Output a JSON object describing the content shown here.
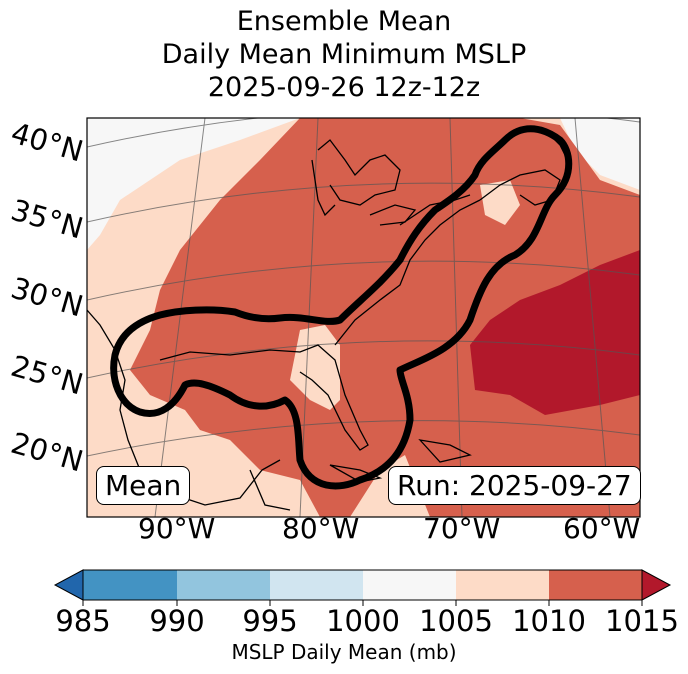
{
  "title": {
    "line1": "Ensemble Mean",
    "line2": "Daily Mean Minimum MSLP",
    "line3": "2025-09-26 12z-12z"
  },
  "map": {
    "lat_labels": [
      "40°N",
      "35°N",
      "30°N",
      "25°N",
      "20°N"
    ],
    "lon_labels": [
      "90°W",
      "80°W",
      "70°W",
      "60°W"
    ],
    "label_left": "Mean",
    "label_right": "Run: 2025-09-27"
  },
  "colorbar": {
    "label": "MSLP Daily Mean (mb)",
    "ticks": [
      "985",
      "990",
      "995",
      "1000",
      "1005",
      "1010",
      "1015"
    ],
    "colors": [
      "#4393c3",
      "#92c5de",
      "#d1e5f0",
      "#f7f7f7",
      "#fddbc7",
      "#d6604d"
    ],
    "extend_low_color": "#2166ac",
    "extend_high_color": "#b2182b"
  },
  "fills": {
    "light": "#f7f7f7",
    "peach": "#fddbc7",
    "red": "#d6604d",
    "darkred": "#b2182b"
  }
}
